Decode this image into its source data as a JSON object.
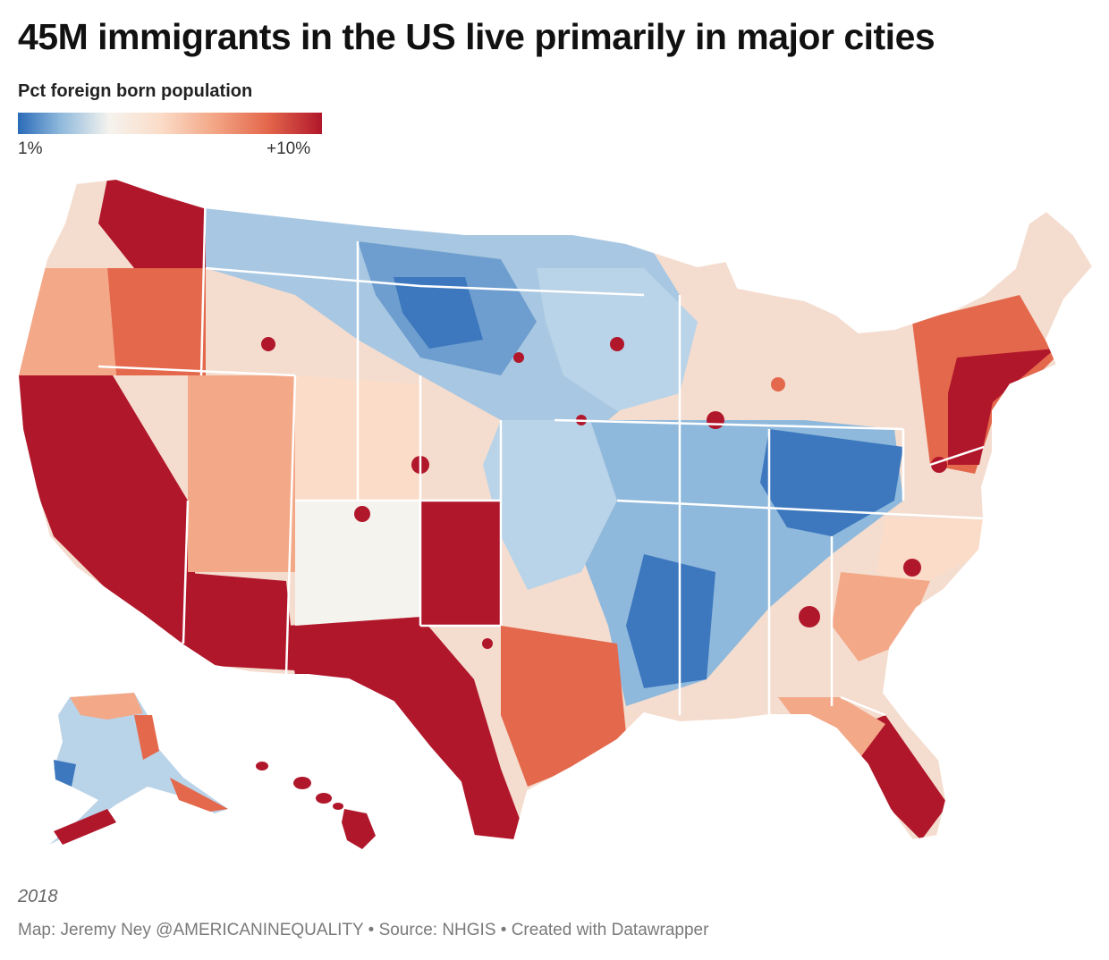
{
  "title": "45M immigrants in the US live primarily in major cities",
  "legend": {
    "title": "Pct foreign born population",
    "min_label": "1%",
    "max_label": "+10%",
    "colors": [
      "#2a6bb8",
      "#8fb9dc",
      "#f5f3ee",
      "#fbdcc8",
      "#f3a888",
      "#e4684c",
      "#b1172b"
    ]
  },
  "map": {
    "subject": "US counties shaded by percent foreign-born population",
    "colors": {
      "high": "#b1172b",
      "mid_high": "#e4684c",
      "mid": "#f3a888",
      "mid_low": "#fbdcc8",
      "neutral": "#f5f3ee",
      "low_mid": "#b9d3e8",
      "low": "#6e9ecf",
      "very_low": "#2a6bb8",
      "border": "#ffffff"
    }
  },
  "year": "2018",
  "footer": "Map: Jeremy Ney @AMERICANINEQUALITY • Source: NHGIS • Created with Datawrapper"
}
